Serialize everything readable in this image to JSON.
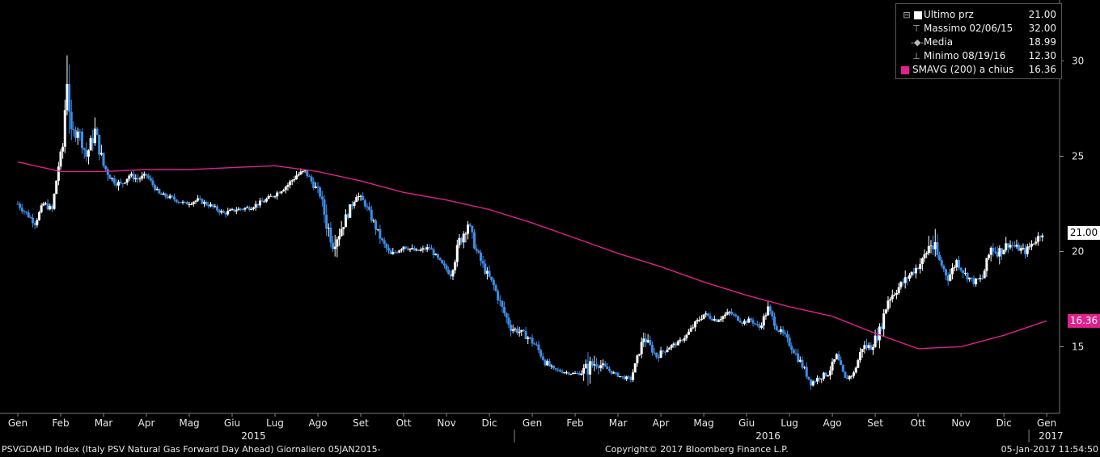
{
  "chart_data": {
    "type": "candlestick",
    "ticker": "PSVGDAHD Index (Italy PSV Natural Gas Forward Day Ahead)",
    "ylim": [
      11.5,
      33.2
    ],
    "yticks": [
      15,
      20,
      25,
      30
    ],
    "xlim_months": [
      0,
      24.3
    ],
    "month_labels": [
      "Gen",
      "Feb",
      "Mar",
      "Apr",
      "Mag",
      "Giu",
      "Lug",
      "Ago",
      "Set",
      "Ott",
      "Nov",
      "Dic",
      "Gen",
      "Feb",
      "Mar",
      "Apr",
      "Mag",
      "Giu",
      "Lug",
      "Ago",
      "Set",
      "Ott",
      "Nov",
      "Dic",
      "Gen"
    ],
    "year_labels": [
      "2015",
      "2016",
      "2017"
    ],
    "close_series": {
      "name": "Ultimo prz",
      "m": [
        0,
        0.2,
        0.4,
        0.6,
        0.8,
        0.95,
        1.05,
        1.15,
        1.25,
        1.4,
        1.6,
        1.8,
        2.0,
        2.2,
        2.4,
        2.6,
        2.8,
        3.0,
        3.3,
        3.6,
        3.9,
        4.2,
        4.5,
        4.8,
        5.1,
        5.4,
        5.7,
        6.0,
        6.3,
        6.5,
        6.7,
        6.9,
        7.05,
        7.2,
        7.35,
        7.5,
        7.7,
        7.9,
        8.1,
        8.3,
        8.5,
        8.7,
        9.0,
        9.3,
        9.6,
        9.9,
        10.1,
        10.3,
        10.5,
        10.7,
        10.9,
        11.1,
        11.3,
        11.5,
        11.7,
        11.9,
        12.1,
        12.3,
        12.5,
        12.7,
        12.9,
        13.1,
        13.3,
        13.5,
        13.7,
        13.9,
        14.1,
        14.3,
        14.6,
        14.9,
        15.2,
        15.4,
        15.6,
        15.8,
        16.0,
        16.3,
        16.6,
        16.9,
        17.1,
        17.3,
        17.5,
        17.7,
        17.9,
        18.1,
        18.3,
        18.5,
        18.7,
        18.9,
        19.1,
        19.3,
        19.5,
        19.7,
        19.9,
        20.1,
        20.3,
        20.5,
        20.7,
        20.9,
        21.1,
        21.3,
        21.5,
        21.7,
        21.9,
        22.1,
        22.3,
        22.5,
        22.7,
        22.9,
        23.1,
        23.3,
        23.5,
        23.7,
        23.9
      ],
      "values": [
        22.5,
        22.0,
        21.5,
        22.5,
        22.2,
        24.5,
        25.5,
        29.5,
        26.0,
        26.5,
        25.0,
        26.3,
        24.5,
        23.8,
        23.5,
        24.0,
        23.8,
        24.0,
        23.0,
        22.8,
        22.5,
        22.7,
        22.4,
        22.0,
        22.2,
        22.3,
        22.6,
        23.0,
        23.5,
        24.0,
        24.2,
        23.5,
        23.0,
        21.5,
        20.5,
        21.0,
        22.0,
        23.0,
        22.5,
        21.5,
        20.5,
        19.8,
        20.3,
        20.0,
        20.2,
        19.3,
        18.8,
        20.5,
        21.5,
        20.0,
        19.0,
        18.2,
        17.0,
        16.0,
        15.8,
        15.5,
        15.0,
        14.2,
        13.8,
        13.7,
        13.6,
        13.6,
        13.9,
        14.2,
        13.9,
        13.6,
        13.4,
        13.3,
        15.5,
        14.5,
        15.0,
        15.2,
        15.6,
        16.2,
        16.7,
        16.4,
        16.8,
        16.3,
        16.4,
        16.0,
        17.0,
        16.0,
        15.5,
        14.8,
        14.0,
        13.1,
        13.4,
        13.6,
        14.5,
        13.3,
        13.6,
        15.0,
        15.0,
        15.8,
        17.5,
        18.0,
        18.5,
        19.0,
        19.5,
        20.5,
        19.5,
        18.6,
        19.5,
        18.8,
        18.4,
        18.6,
        20.2,
        20.0,
        20.4,
        20.2,
        20.0,
        20.5,
        21.0
      ],
      "range": [
        0.6,
        0.5,
        0.5,
        0.6,
        0.5,
        0.8,
        1.0,
        4.5,
        1.5,
        1.2,
        1.0,
        1.5,
        1.0,
        0.7,
        0.6,
        0.5,
        0.5,
        0.4,
        0.4,
        0.4,
        0.4,
        0.4,
        0.4,
        0.4,
        0.4,
        0.4,
        0.4,
        0.4,
        0.5,
        0.6,
        0.5,
        0.6,
        0.7,
        1.5,
        1.5,
        1.2,
        0.8,
        0.6,
        0.6,
        0.7,
        0.6,
        0.5,
        0.5,
        0.4,
        0.4,
        0.4,
        0.5,
        1.3,
        1.0,
        0.8,
        0.7,
        0.7,
        0.8,
        0.7,
        0.6,
        0.6,
        0.7,
        0.6,
        0.3,
        0.3,
        0.2,
        0.3,
        1.5,
        1.0,
        0.4,
        0.3,
        0.3,
        0.3,
        0.8,
        0.6,
        0.4,
        0.3,
        0.4,
        0.5,
        0.5,
        0.4,
        0.4,
        0.4,
        0.4,
        0.4,
        0.7,
        0.5,
        0.6,
        0.6,
        0.7,
        0.5,
        0.5,
        0.5,
        0.6,
        0.4,
        0.4,
        0.8,
        0.7,
        1.0,
        1.0,
        0.8,
        0.8,
        0.7,
        0.8,
        2.5,
        0.8,
        0.6,
        0.8,
        0.6,
        0.5,
        0.5,
        1.2,
        1.0,
        0.7,
        0.6,
        0.6,
        0.6,
        0.6
      ]
    },
    "sma_series": {
      "name": "SMAVG (200) a chius",
      "color": "#e0208c",
      "m": [
        0,
        1,
        2,
        3,
        4,
        5,
        6,
        7,
        8,
        9,
        10,
        11,
        12,
        13,
        14,
        15,
        16,
        17,
        18,
        19,
        20,
        21,
        22,
        23,
        24
      ],
      "values": [
        24.7,
        24.2,
        24.2,
        24.3,
        24.3,
        24.4,
        24.5,
        24.2,
        23.7,
        23.1,
        22.7,
        22.2,
        21.5,
        20.7,
        19.9,
        19.2,
        18.4,
        17.7,
        17.1,
        16.6,
        15.7,
        14.9,
        15.0,
        15.6,
        16.36
      ]
    },
    "legend": [
      {
        "label": "Ultimo prz",
        "value": "21.00"
      },
      {
        "label": "Massimo 02/06/15",
        "value": "32.00"
      },
      {
        "label": "Media",
        "value": "18.99"
      },
      {
        "label": "Minimo 08/19/16",
        "value": "12.30"
      },
      {
        "label": "SMAVG (200) a chius",
        "value": "16.36"
      }
    ],
    "last_price_tag": "21.00",
    "sma_tag": "16.36",
    "legend_position": "top-right"
  },
  "footer": {
    "left": "PSVGDAHD Index (Italy PSV Natural Gas Forward Day Ahead)  Giornaliero 05JAN2015-",
    "center": "Copyright© 2017 Bloomberg Finance L.P.",
    "right": "05-Jan-2017 11:54:50"
  },
  "colors": {
    "up": "#ffffff",
    "down": "#3b8fe8",
    "sma": "#e0208c",
    "background": "#000000"
  }
}
